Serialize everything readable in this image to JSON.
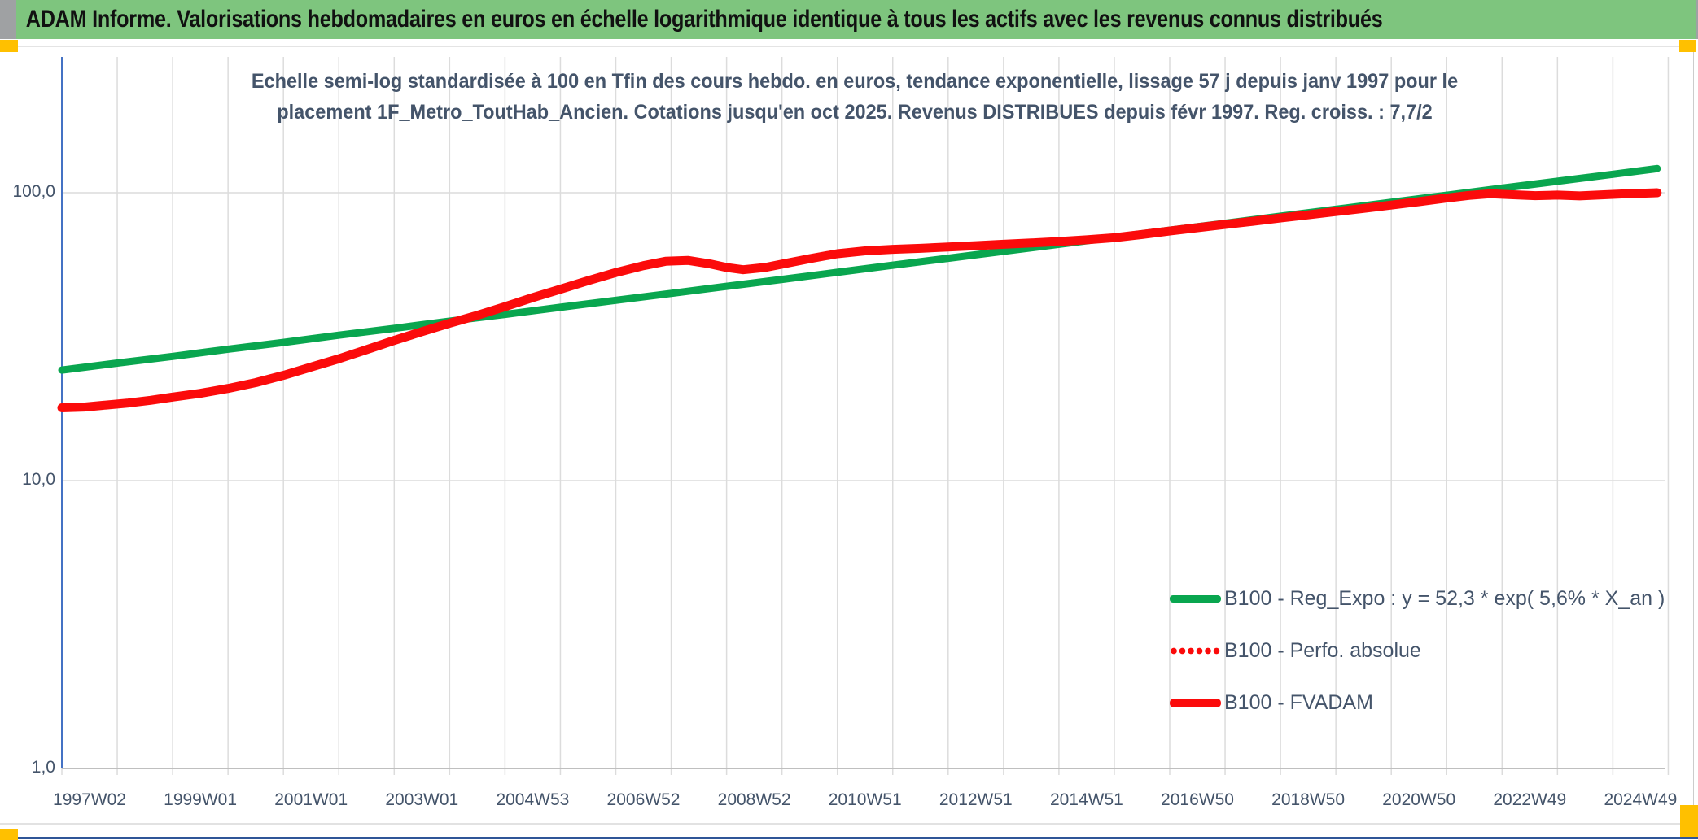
{
  "header": {
    "title": "ADAM Informe. Valorisations hebdomadaires en euros en échelle logarithmique identique à tous les actifs avec les revenus connus distribués"
  },
  "subtitle": {
    "line1": "Echelle semi-log standardisée à 100 en Tfin des cours hebdo. en euros, tendance exponentielle, lissage 57 j depuis janv 1997 pour le",
    "line2": "placement 1F_Metro_ToutHab_Ancien. Cotations jusqu'en oct 2025. Revenus DISTRIBUES depuis févr 1997. Reg. croiss. : 7,7/2"
  },
  "colors": {
    "header_bg": "#7EC57E",
    "accent_orange": "#FFC000",
    "axis_blue": "#4472C4",
    "bottom_blue": "#2F5597",
    "text_dark": "#44546A",
    "grid": "#DCDCDC",
    "axis_gray": "#BFBFBF",
    "series_green": "#09A64F",
    "series_red": "#FB0B0B"
  },
  "chart_data": {
    "type": "line",
    "title": "ADAM Informe. Valorisations hebdomadaires en euros en échelle logarithmique identique à tous les actifs avec les revenus connus distribués",
    "subtitle": "Echelle semi-log standardisée à 100 en Tfin des cours hebdo. en euros, tendance exponentielle, lissage 57 j depuis janv 1997 pour le placement 1F_Metro_ToutHab_Ancien. Cotations jusqu'en oct 2025. Revenus DISTRIBUES depuis févr 1997. Reg. croiss. : 7,7/2",
    "x_axis": {
      "tick_labels": [
        "1997W02",
        "1999W01",
        "2001W01",
        "2003W01",
        "2004W53",
        "2006W52",
        "2008W52",
        "2010W51",
        "2012W51",
        "2014W51",
        "2016W50",
        "2018W50",
        "2020W50",
        "2022W49",
        "2024W49"
      ],
      "tick_years": [
        1997,
        1999,
        2001,
        2003,
        2005,
        2007,
        2009,
        2011,
        2013,
        2015,
        2017,
        2019,
        2021,
        2023,
        2025
      ],
      "range_years": [
        1997.0,
        2025.8
      ],
      "gridline_every_years": 1
    },
    "y_axis": {
      "scale": "log10",
      "tick_labels": [
        "100,0",
        "10,0",
        "1,0"
      ],
      "tick_values": [
        100,
        10,
        1
      ],
      "gridline_values": [
        100,
        10
      ],
      "ylim": [
        1,
        250
      ]
    },
    "legend_position": "inside-bottom-right",
    "grid": true,
    "series": [
      {
        "name": "B100 - Reg_Expo : y = 52,3 * exp( 5,6% *  X_an )",
        "color": "#09A64F",
        "style": "solid",
        "points": [
          [
            1997,
            24.2
          ],
          [
            1998,
            25.6
          ],
          [
            1999,
            27.0
          ],
          [
            2000,
            28.6
          ],
          [
            2001,
            30.2
          ],
          [
            2002,
            32.0
          ],
          [
            2003,
            33.8
          ],
          [
            2004,
            35.8
          ],
          [
            2005,
            37.8
          ],
          [
            2006,
            40.0
          ],
          [
            2007,
            42.3
          ],
          [
            2008,
            44.7
          ],
          [
            2009,
            47.3
          ],
          [
            2010,
            50.0
          ],
          [
            2011,
            52.9
          ],
          [
            2012,
            56.0
          ],
          [
            2013,
            59.2
          ],
          [
            2014,
            62.6
          ],
          [
            2015,
            66.2
          ],
          [
            2016,
            70.0
          ],
          [
            2017,
            74.1
          ],
          [
            2018,
            78.3
          ],
          [
            2019,
            82.9
          ],
          [
            2020,
            87.6
          ],
          [
            2021,
            92.7
          ],
          [
            2022,
            98.0
          ],
          [
            2023,
            103.7
          ],
          [
            2024,
            109.6
          ],
          [
            2025,
            115.9
          ],
          [
            2025.8,
            121.3
          ]
        ]
      },
      {
        "name": "B100 - Perfo. absolue",
        "color": "#FB0B0B",
        "style": "dotted",
        "note": "coincides with B100 - FVADAM (hidden beneath solid red line)",
        "points_ref": 2
      },
      {
        "name": "B100 - FVADAM",
        "color": "#FB0B0B",
        "style": "solid",
        "points": [
          [
            1997.0,
            17.9
          ],
          [
            1997.4,
            18.0
          ],
          [
            1997.8,
            18.3
          ],
          [
            1998.2,
            18.6
          ],
          [
            1998.6,
            19.0
          ],
          [
            1999.0,
            19.5
          ],
          [
            1999.5,
            20.1
          ],
          [
            2000.0,
            20.9
          ],
          [
            2000.5,
            21.9
          ],
          [
            2001.0,
            23.2
          ],
          [
            2001.5,
            24.8
          ],
          [
            2002.0,
            26.5
          ],
          [
            2002.5,
            28.5
          ],
          [
            2003.0,
            30.7
          ],
          [
            2003.5,
            32.9
          ],
          [
            2004.0,
            35.2
          ],
          [
            2004.5,
            37.5
          ],
          [
            2005.0,
            40.2
          ],
          [
            2005.5,
            43.2
          ],
          [
            2006.0,
            46.2
          ],
          [
            2006.5,
            49.5
          ],
          [
            2007.0,
            52.8
          ],
          [
            2007.5,
            55.8
          ],
          [
            2007.9,
            57.8
          ],
          [
            2008.3,
            58.2
          ],
          [
            2008.7,
            56.6
          ],
          [
            2009.0,
            55.0
          ],
          [
            2009.3,
            54.0
          ],
          [
            2009.7,
            55.0
          ],
          [
            2010.0,
            56.5
          ],
          [
            2010.5,
            59.0
          ],
          [
            2011.0,
            61.4
          ],
          [
            2011.5,
            62.8
          ],
          [
            2012.0,
            63.6
          ],
          [
            2012.5,
            64.1
          ],
          [
            2013.0,
            64.8
          ],
          [
            2013.5,
            65.5
          ],
          [
            2014.0,
            66.2
          ],
          [
            2014.5,
            66.9
          ],
          [
            2015.0,
            67.7
          ],
          [
            2015.5,
            68.6
          ],
          [
            2016.0,
            69.8
          ],
          [
            2016.5,
            71.6
          ],
          [
            2017.0,
            73.6
          ],
          [
            2017.5,
            75.6
          ],
          [
            2018.0,
            77.6
          ],
          [
            2018.5,
            79.6
          ],
          [
            2019.0,
            81.7
          ],
          [
            2019.5,
            83.8
          ],
          [
            2020.0,
            86.0
          ],
          [
            2020.5,
            88.2
          ],
          [
            2021.0,
            90.6
          ],
          [
            2021.5,
            93.1
          ],
          [
            2022.0,
            95.8
          ],
          [
            2022.4,
            97.9
          ],
          [
            2022.8,
            99.2
          ],
          [
            2023.2,
            98.4
          ],
          [
            2023.6,
            97.7
          ],
          [
            2024.0,
            98.1
          ],
          [
            2024.4,
            97.5
          ],
          [
            2024.8,
            98.3
          ],
          [
            2025.2,
            99.1
          ],
          [
            2025.8,
            100.0
          ]
        ]
      }
    ]
  },
  "legend": {
    "items": [
      {
        "label": "B100 - Reg_Expo : y = 52,3 * exp( 5,6% *  X_an )"
      },
      {
        "label": "B100 - Perfo. absolue"
      },
      {
        "label": "B100 - FVADAM"
      }
    ]
  }
}
